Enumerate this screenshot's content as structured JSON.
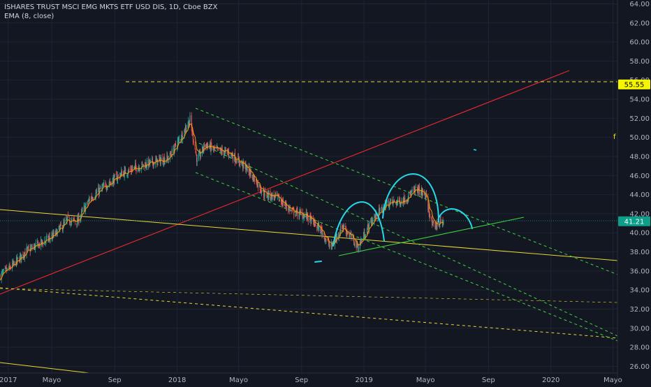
{
  "header": {
    "title": "ISHARES TRUST MSCI EMG MKTS ETF USD DIS, 1D, Cboe BZX",
    "indicator": "EMA (8, close)"
  },
  "colors": {
    "background": "#131722",
    "grid": "#1f2433",
    "text": "#b2b5be",
    "up": "#26a69a",
    "down": "#ef5350",
    "ema": "#ff9800",
    "red_line": "#e0282e",
    "yellow": "#e8d935",
    "green": "#3fd43f",
    "cyan": "#27d7e8",
    "price_tag": "#0e9f8a",
    "target_tag": "#f5f500"
  },
  "chart_data": {
    "type": "candlestick",
    "y_axis": {
      "min": 25.3,
      "max": 64.4,
      "ticks": [
        "26.00",
        "28.00",
        "30.00",
        "32.00",
        "34.00",
        "36.00",
        "38.00",
        "40.00",
        "42.00",
        "44.00",
        "46.00",
        "48.00",
        "50.00",
        "52.00",
        "54.00",
        "56.00",
        "58.00",
        "60.00",
        "62.00",
        "64.00"
      ]
    },
    "x_axis": {
      "range": [
        "2017-01-20",
        "2020-05-10"
      ],
      "ticks": [
        {
          "label": "2017",
          "date": "2017-02-05"
        },
        {
          "label": "Mayo",
          "date": "2017-05-01"
        },
        {
          "label": "Sep",
          "date": "2017-09-01"
        },
        {
          "label": "2018",
          "date": "2018-01-01"
        },
        {
          "label": "Mayo",
          "date": "2018-05-01"
        },
        {
          "label": "Sep",
          "date": "2018-09-01"
        },
        {
          "label": "2019",
          "date": "2019-01-01"
        },
        {
          "label": "Mayo",
          "date": "2019-05-01"
        },
        {
          "label": "Sep",
          "date": "2019-09-01"
        },
        {
          "label": "2020",
          "date": "2020-01-01"
        },
        {
          "label": "Mayo",
          "date": "2020-05-01"
        }
      ]
    },
    "price_path": [
      {
        "x": "2017-01-20",
        "y": 35.5
      },
      {
        "x": "2017-02-15",
        "y": 36.6
      },
      {
        "x": "2017-03-10",
        "y": 38.0
      },
      {
        "x": "2017-04-10",
        "y": 38.9
      },
      {
        "x": "2017-05-05",
        "y": 39.7
      },
      {
        "x": "2017-06-01",
        "y": 41.3
      },
      {
        "x": "2017-06-20",
        "y": 41.2
      },
      {
        "x": "2017-07-15",
        "y": 43.6
      },
      {
        "x": "2017-08-15",
        "y": 45.0
      },
      {
        "x": "2017-09-15",
        "y": 46.2
      },
      {
        "x": "2017-10-15",
        "y": 46.9
      },
      {
        "x": "2017-11-15",
        "y": 47.4
      },
      {
        "x": "2017-12-15",
        "y": 47.8
      },
      {
        "x": "2018-01-10",
        "y": 50.2
      },
      {
        "x": "2018-01-26",
        "y": 51.9
      },
      {
        "x": "2018-02-09",
        "y": 47.5
      },
      {
        "x": "2018-02-25",
        "y": 49.3
      },
      {
        "x": "2018-03-15",
        "y": 48.7
      },
      {
        "x": "2018-04-15",
        "y": 48.3
      },
      {
        "x": "2018-05-20",
        "y": 46.6
      },
      {
        "x": "2018-06-20",
        "y": 44.1
      },
      {
        "x": "2018-07-15",
        "y": 43.7
      },
      {
        "x": "2018-08-15",
        "y": 42.2
      },
      {
        "x": "2018-09-10",
        "y": 41.8
      },
      {
        "x": "2018-10-10",
        "y": 40.2
      },
      {
        "x": "2018-10-28",
        "y": 38.4
      },
      {
        "x": "2018-11-20",
        "y": 40.8
      },
      {
        "x": "2018-12-20",
        "y": 38.5
      },
      {
        "x": "2019-01-15",
        "y": 41.2
      },
      {
        "x": "2019-02-15",
        "y": 43.1
      },
      {
        "x": "2019-03-15",
        "y": 43.3
      },
      {
        "x": "2019-04-15",
        "y": 44.6
      },
      {
        "x": "2019-05-01",
        "y": 43.9
      },
      {
        "x": "2019-05-15",
        "y": 40.6
      },
      {
        "x": "2019-06-05",
        "y": 41.2
      }
    ],
    "current_price": "41.21",
    "target_level": "55.55",
    "annotations": {
      "target_line": {
        "y": 55.55
      },
      "support_line_high": {
        "y": 41.21
      }
    }
  },
  "labels": {
    "current_price": "41.21",
    "target": "55.55",
    "side_marker": "f"
  }
}
